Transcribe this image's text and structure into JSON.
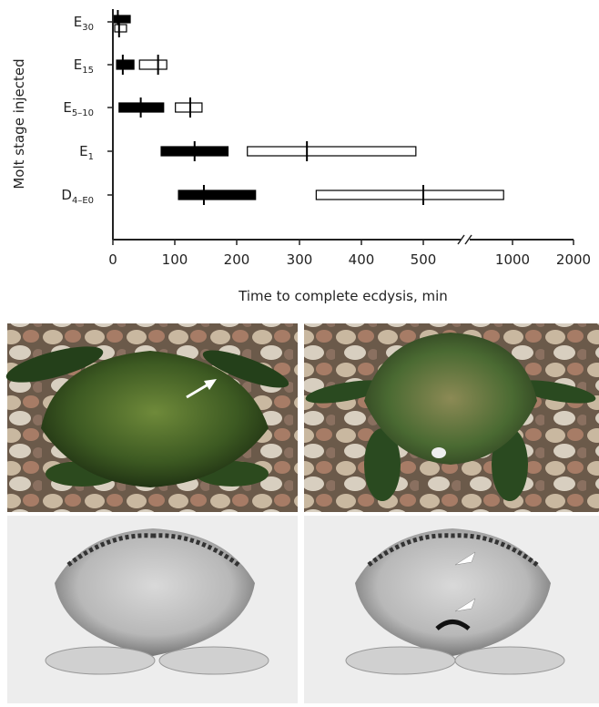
{
  "chart_data": {
    "type": "range",
    "y_label": "Molt stage injected",
    "x_label": "Time to complete ecdysis, min",
    "categories": [
      {
        "base": "E",
        "sub": "30"
      },
      {
        "base": "E",
        "sub": "15"
      },
      {
        "base": "E",
        "sub": "5–10"
      },
      {
        "base": "E",
        "sub": "1"
      },
      {
        "base": "D",
        "sub": "4–E0"
      }
    ],
    "series": [
      {
        "color": "#000000",
        "low": [
          2,
          6,
          10,
          78,
          106
        ],
        "median": [
          8,
          16,
          45,
          132,
          147
        ],
        "high": [
          28,
          34,
          82,
          186,
          230
        ]
      },
      {
        "color": "#ffffff",
        "low": [
          3,
          43,
          101,
          217,
          327
        ],
        "median": [
          10,
          73,
          125,
          312,
          500
        ],
        "high": [
          22,
          87,
          144,
          488,
          950
        ]
      }
    ],
    "xlim": [
      0,
      2000
    ],
    "xticks": [
      0,
      100,
      200,
      300,
      400,
      500,
      1000,
      2000
    ],
    "axis_break": true
  }
}
